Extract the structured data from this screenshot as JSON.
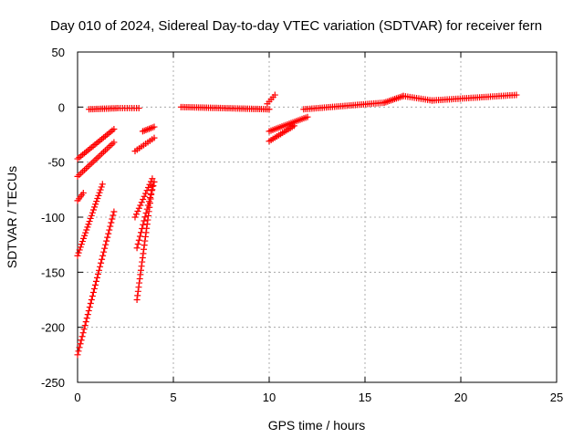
{
  "title": "Day 010 of 2024, Sidereal Day-to-day VTEC variation (SDTVAR) for receiver fern",
  "xlabel": "GPS time / hours",
  "ylabel": "SDTVAR / TECUs",
  "chart_data": {
    "type": "scatter",
    "title": "Day 010 of 2024, Sidereal Day-to-day VTEC variation (SDTVAR) for receiver fern",
    "xlabel": "GPS time / hours",
    "ylabel": "SDTVAR / TECUs",
    "xlim": [
      0,
      25
    ],
    "ylim": [
      -250,
      50
    ],
    "xticks": [
      0,
      5,
      10,
      15,
      20,
      25
    ],
    "yticks": [
      -250,
      -200,
      -150,
      -100,
      -50,
      0,
      50
    ],
    "grid": true,
    "marker": "+",
    "color": "#ff0000",
    "segments": [
      {
        "x0": 0.6,
        "x1": 2.1,
        "y0": -2,
        "y1": -1,
        "n": 16
      },
      {
        "x0": 2.1,
        "x1": 3.2,
        "y0": -1,
        "y1": -1,
        "n": 10
      },
      {
        "x0": 3.4,
        "x1": 4.0,
        "y0": -22,
        "y1": -18,
        "n": 8
      },
      {
        "x0": 5.4,
        "x1": 10.0,
        "y0": 0,
        "y1": -2,
        "n": 46
      },
      {
        "x0": 9.9,
        "x1": 10.3,
        "y0": 3,
        "y1": 11,
        "n": 5
      },
      {
        "x0": 11.8,
        "x1": 16.0,
        "y0": -2,
        "y1": 4,
        "n": 40
      },
      {
        "x0": 16.0,
        "x1": 17.0,
        "y0": 4,
        "y1": 10,
        "n": 12
      },
      {
        "x0": 17.0,
        "x1": 18.5,
        "y0": 10,
        "y1": 6,
        "n": 14
      },
      {
        "x0": 18.5,
        "x1": 22.9,
        "y0": 6,
        "y1": 11,
        "n": 40
      },
      {
        "x0": 0.0,
        "x1": 1.9,
        "y0": -47,
        "y1": -20,
        "n": 22
      },
      {
        "x0": 0.0,
        "x1": 1.9,
        "y0": -63,
        "y1": -32,
        "n": 22
      },
      {
        "x0": 0.0,
        "x1": 0.3,
        "y0": -85,
        "y1": -78,
        "n": 5
      },
      {
        "x0": 0.0,
        "x1": 1.3,
        "y0": -135,
        "y1": -70,
        "n": 26
      },
      {
        "x0": 0.0,
        "x1": 1.9,
        "y0": -225,
        "y1": -95,
        "n": 40
      },
      {
        "x0": 3.0,
        "x1": 4.0,
        "y0": -40,
        "y1": -28,
        "n": 10
      },
      {
        "x0": 3.0,
        "x1": 3.9,
        "y0": -100,
        "y1": -65,
        "n": 14
      },
      {
        "x0": 3.1,
        "x1": 4.0,
        "y0": -128,
        "y1": -68,
        "n": 18
      },
      {
        "x0": 3.1,
        "x1": 3.9,
        "y0": -175,
        "y1": -72,
        "n": 28
      },
      {
        "x0": 10.0,
        "x1": 12.0,
        "y0": -22,
        "y1": -9,
        "n": 22
      },
      {
        "x0": 10.0,
        "x1": 11.3,
        "y0": -31,
        "y1": -17,
        "n": 14
      }
    ]
  }
}
